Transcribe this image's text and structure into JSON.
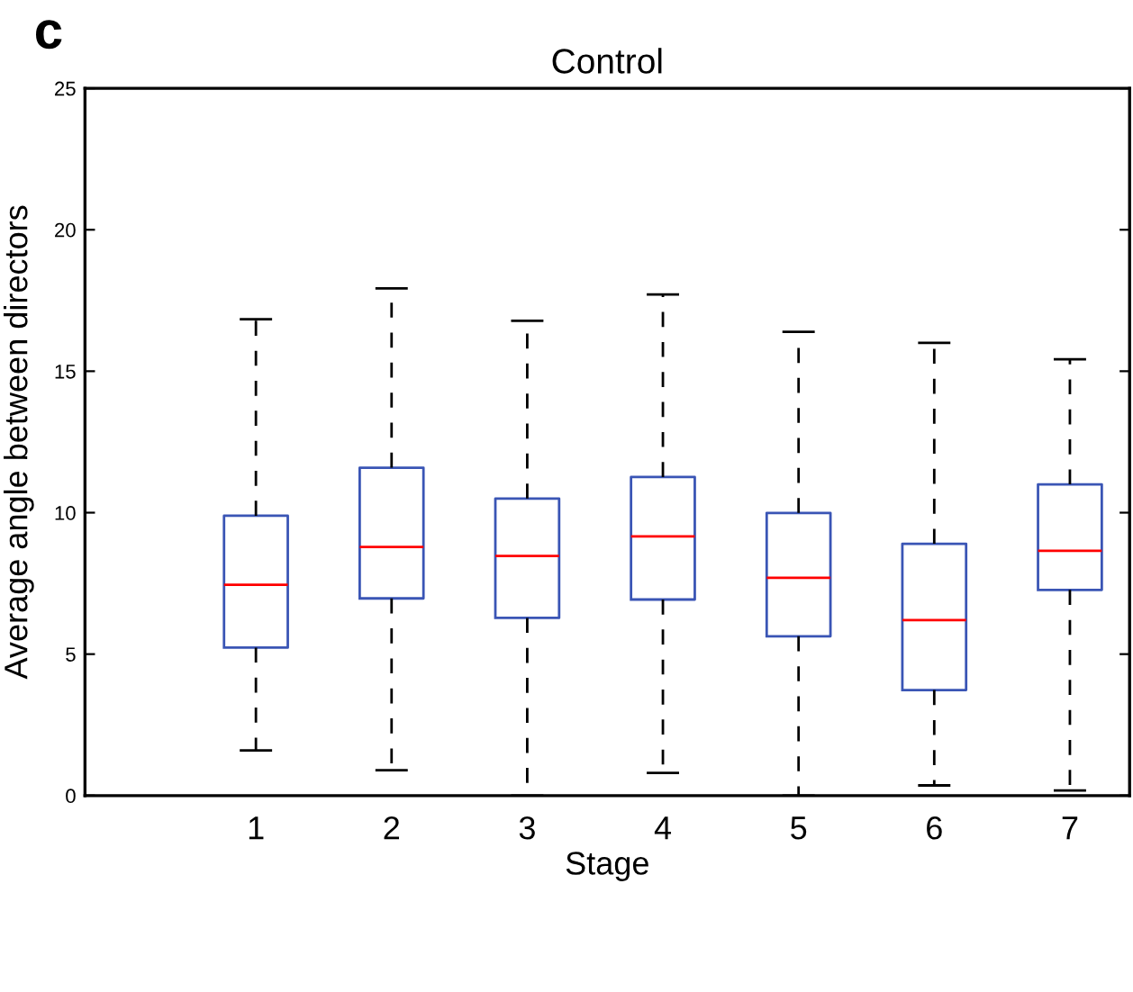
{
  "chart_data": {
    "type": "box",
    "title": "Control",
    "xlabel": "Stage",
    "ylabel": "Average angle between directors",
    "annotations": [
      "c"
    ],
    "categories": [
      "1",
      "2",
      "3",
      "4",
      "5",
      "6",
      "7"
    ],
    "ylim": [
      0,
      25
    ],
    "yticks": [
      0,
      5,
      10,
      15,
      20,
      25
    ],
    "grid": false,
    "legend": false,
    "series": [
      {
        "color": "#3a55b5",
        "boxes": [
          {
            "low": 1.6,
            "q1": 5.23,
            "median": 7.45,
            "q3": 9.89,
            "high": 16.84
          },
          {
            "low": 0.9,
            "q1": 6.97,
            "median": 8.79,
            "q3": 11.59,
            "high": 17.93
          },
          {
            "low": 0,
            "q1": 6.28,
            "median": 8.47,
            "q3": 10.5,
            "high": 16.78
          },
          {
            "low": 0.8,
            "q1": 6.93,
            "median": 9.16,
            "q3": 11.26,
            "high": 17.71
          },
          {
            "low": 0,
            "q1": 5.63,
            "median": 7.7,
            "q3": 9.99,
            "high": 16.39
          },
          {
            "low": 0.36,
            "q1": 3.73,
            "median": 6.2,
            "q3": 8.9,
            "high": 16.0
          },
          {
            "low": 0.18,
            "q1": 7.27,
            "median": 8.65,
            "q3": 11.0,
            "high": 15.42
          }
        ]
      }
    ]
  }
}
